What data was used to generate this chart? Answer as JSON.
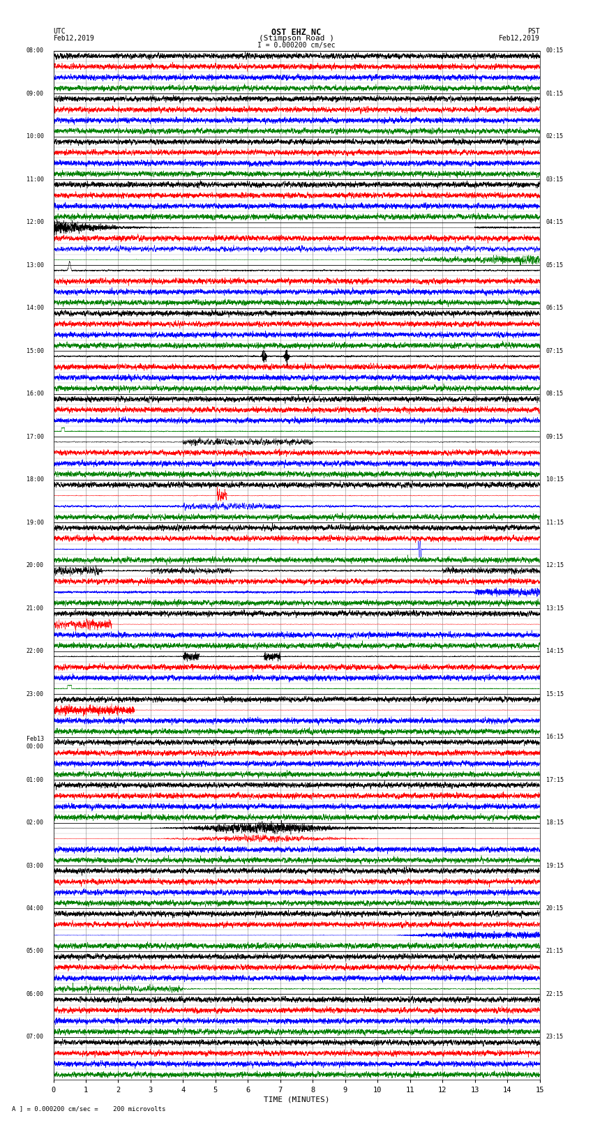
{
  "title_line1": "OST EHZ NC",
  "title_line2": "(Stimpson Road )",
  "title_line3": "I = 0.000200 cm/sec",
  "left_header_line1": "UTC",
  "left_header_line2": "Feb12,2019",
  "right_header_line1": "PST",
  "right_header_line2": "Feb12,2019",
  "xlabel": "TIME (MINUTES)",
  "footer": "A ] = 0.000200 cm/sec =    200 microvolts",
  "xmin": 0,
  "xmax": 15,
  "xticks": [
    0,
    1,
    2,
    3,
    4,
    5,
    6,
    7,
    8,
    9,
    10,
    11,
    12,
    13,
    14,
    15
  ],
  "left_times": [
    "08:00",
    "09:00",
    "10:00",
    "11:00",
    "12:00",
    "13:00",
    "14:00",
    "15:00",
    "16:00",
    "17:00",
    "18:00",
    "19:00",
    "20:00",
    "21:00",
    "22:00",
    "23:00",
    "Feb13\n00:00",
    "01:00",
    "02:00",
    "03:00",
    "04:00",
    "05:00",
    "06:00",
    "07:00"
  ],
  "right_times": [
    "00:15",
    "01:15",
    "02:15",
    "03:15",
    "04:15",
    "05:15",
    "06:15",
    "07:15",
    "08:15",
    "09:15",
    "10:15",
    "11:15",
    "12:15",
    "13:15",
    "14:15",
    "15:15",
    "16:15",
    "17:15",
    "18:15",
    "19:15",
    "20:15",
    "21:15",
    "22:15",
    "23:15"
  ],
  "n_hours": 24,
  "n_traces_per_hour": 4,
  "background_color": "#ffffff",
  "grid_color": "#555555",
  "trace_colors": [
    "black",
    "red",
    "blue",
    "green"
  ],
  "figsize": [
    8.5,
    16.13
  ],
  "dpi": 100
}
